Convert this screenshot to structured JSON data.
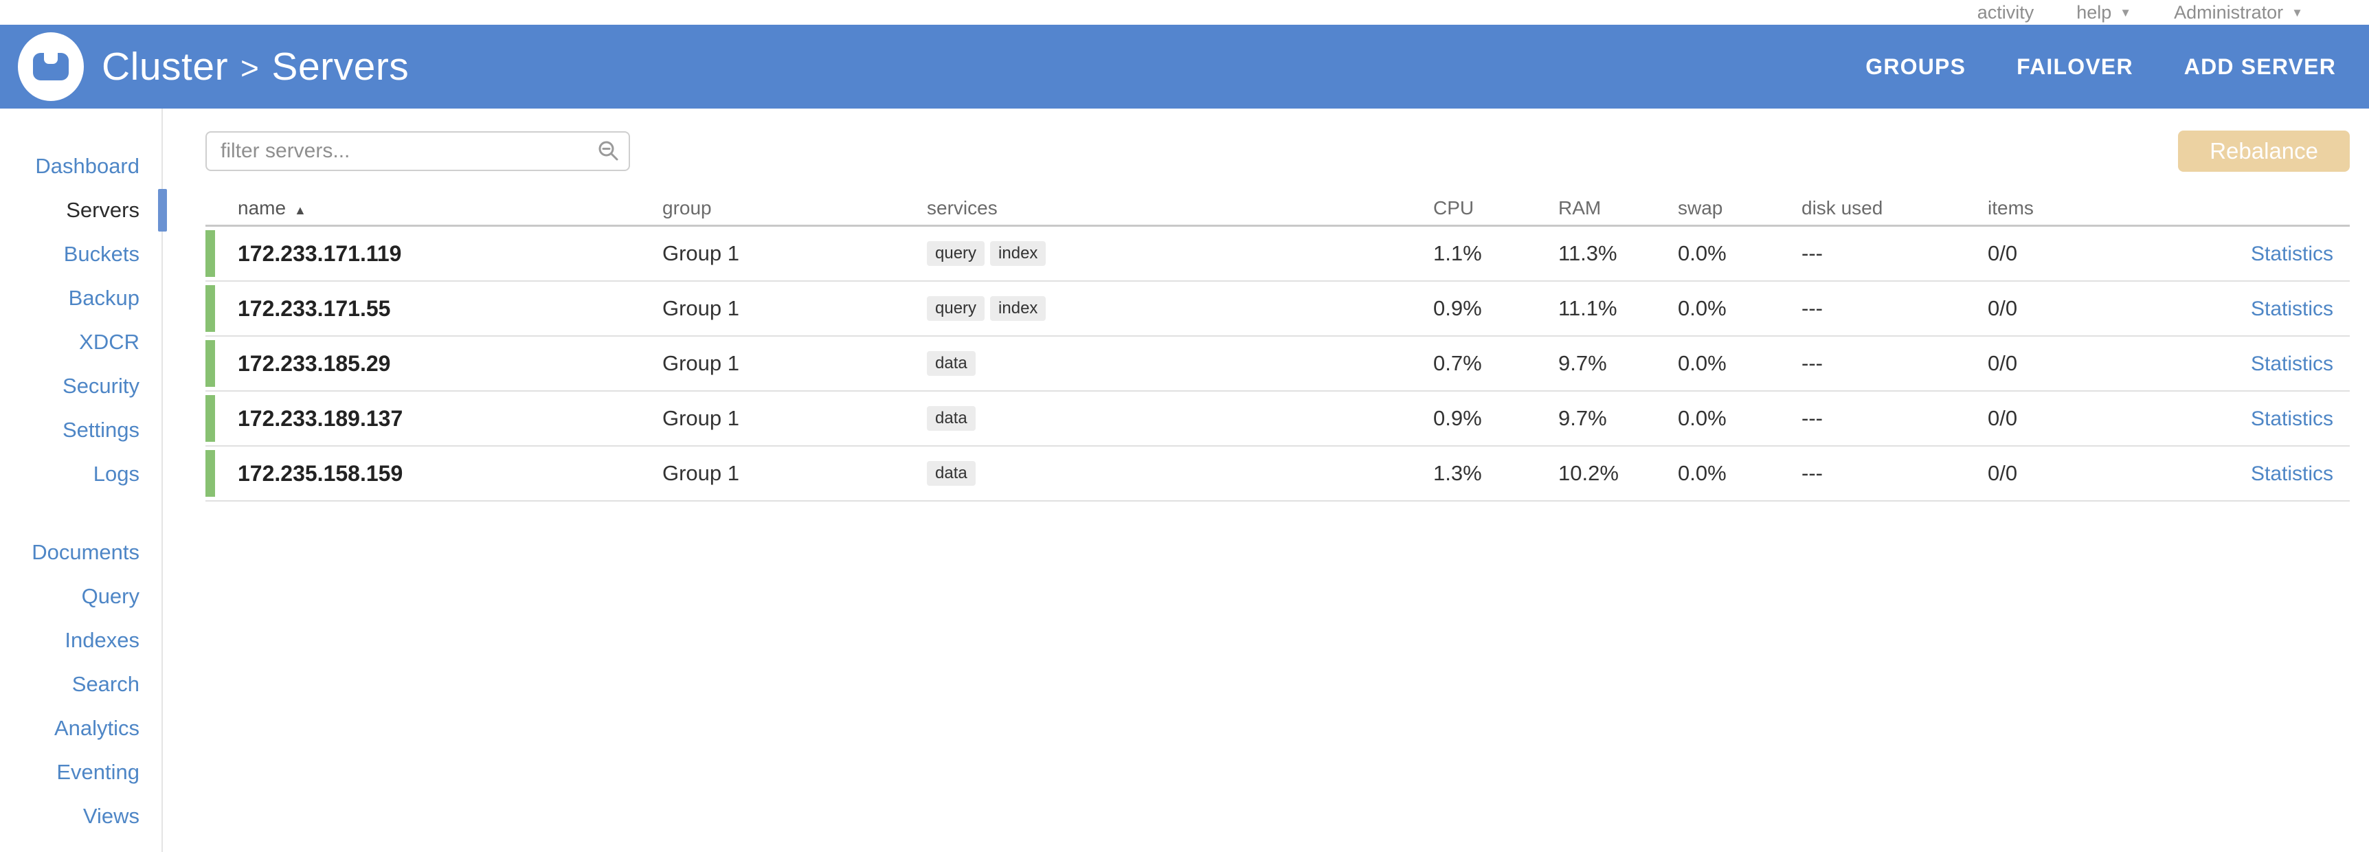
{
  "topbar": {
    "items": [
      {
        "label": "activity",
        "caret": false
      },
      {
        "label": "help",
        "caret": true
      },
      {
        "label": "Administrator",
        "caret": true
      }
    ]
  },
  "header": {
    "breadcrumb_parent": "Cluster",
    "breadcrumb_separator": ">",
    "breadcrumb_current": "Servers",
    "menu": [
      "GROUPS",
      "FAILOVER",
      "ADD SERVER"
    ]
  },
  "sidebar": {
    "active": "Servers",
    "groups": [
      [
        "Dashboard",
        "Servers",
        "Buckets",
        "Backup",
        "XDCR",
        "Security",
        "Settings",
        "Logs"
      ],
      [
        "Documents",
        "Query",
        "Indexes",
        "Search",
        "Analytics",
        "Eventing",
        "Views"
      ]
    ]
  },
  "toolbar": {
    "filter_placeholder": "filter servers...",
    "rebalance_label": "Rebalance"
  },
  "table": {
    "columns": [
      {
        "label": "name",
        "sort": "asc"
      },
      {
        "label": "group"
      },
      {
        "label": "services"
      },
      {
        "label": "CPU"
      },
      {
        "label": "RAM"
      },
      {
        "label": "swap"
      },
      {
        "label": "disk used"
      },
      {
        "label": "items"
      },
      {
        "label": ""
      }
    ],
    "rows": [
      {
        "name": "172.233.171.119",
        "group": "Group 1",
        "services": [
          "query",
          "index"
        ],
        "cpu": "1.1%",
        "ram": "11.3%",
        "swap": "0.0%",
        "disk_used": "---",
        "items": "0/0",
        "stats": "Statistics"
      },
      {
        "name": "172.233.171.55",
        "group": "Group 1",
        "services": [
          "query",
          "index"
        ],
        "cpu": "0.9%",
        "ram": "11.1%",
        "swap": "0.0%",
        "disk_used": "---",
        "items": "0/0",
        "stats": "Statistics"
      },
      {
        "name": "172.233.185.29",
        "group": "Group 1",
        "services": [
          "data"
        ],
        "cpu": "0.7%",
        "ram": "9.7%",
        "swap": "0.0%",
        "disk_used": "---",
        "items": "0/0",
        "stats": "Statistics"
      },
      {
        "name": "172.233.189.137",
        "group": "Group 1",
        "services": [
          "data"
        ],
        "cpu": "0.9%",
        "ram": "9.7%",
        "swap": "0.0%",
        "disk_used": "---",
        "items": "0/0",
        "stats": "Statistics"
      },
      {
        "name": "172.235.158.159",
        "group": "Group 1",
        "services": [
          "data"
        ],
        "cpu": "1.3%",
        "ram": "10.2%",
        "swap": "0.0%",
        "disk_used": "---",
        "items": "0/0",
        "stats": "Statistics"
      }
    ]
  },
  "colors": {
    "header_blue": "#5485CE",
    "link_blue": "#4e86c6",
    "indicator_blue": "#6a92d2",
    "healthy_green": "#88c172",
    "rebalance_bg": "#ecd2a2",
    "tag_bg": "#ececec"
  }
}
